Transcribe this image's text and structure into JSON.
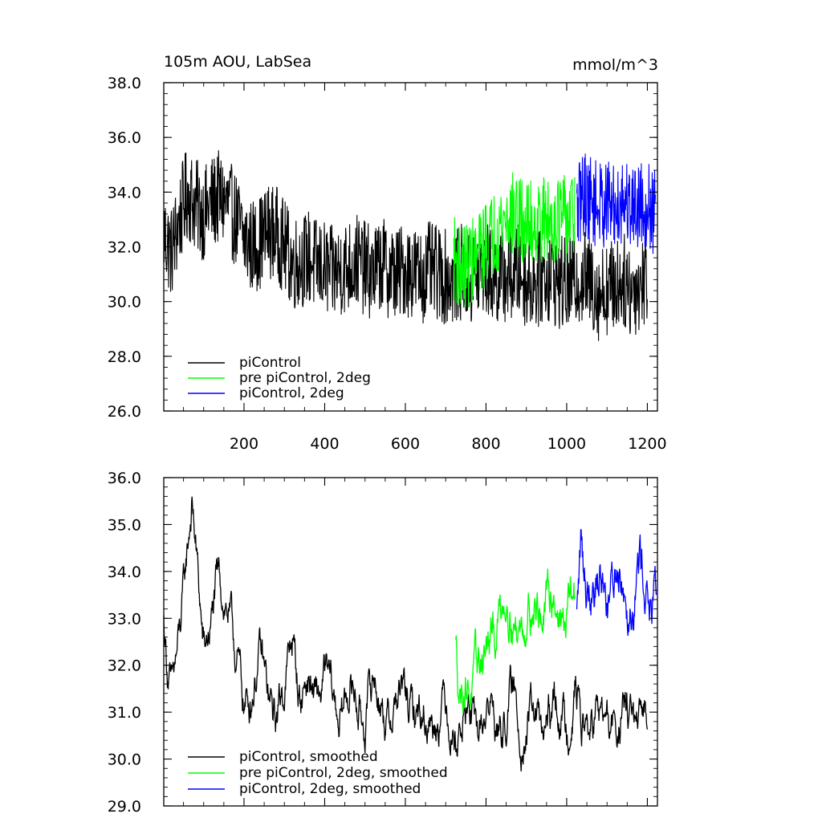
{
  "chart_data": [
    {
      "type": "line",
      "title": "105m AOU, LabSea",
      "units": "mmol/m^3",
      "xlabel": "",
      "ylabel": "",
      "xlim": [
        1,
        1225
      ],
      "ylim": [
        26.0,
        38.0
      ],
      "xticks": [
        200,
        400,
        600,
        800,
        1000,
        1200
      ],
      "xtick_labels": [
        "200",
        "400",
        "600",
        "800",
        "1000",
        "1200"
      ],
      "yticks": [
        26.0,
        28.0,
        30.0,
        32.0,
        34.0,
        36.0,
        38.0
      ],
      "ytick_labels": [
        "26.0",
        "28.0",
        "30.0",
        "32.0",
        "34.0",
        "36.0",
        "38.0"
      ],
      "legend_position": "bottom-left",
      "series": [
        {
          "name": "piControl",
          "color": "#000000",
          "x": [
            1,
            20,
            40,
            60,
            80,
            100,
            120,
            140,
            160,
            180,
            200,
            220,
            240,
            260,
            280,
            300,
            320,
            340,
            360,
            380,
            400,
            420,
            440,
            460,
            480,
            500,
            520,
            540,
            560,
            580,
            600,
            620,
            640,
            660,
            680,
            700,
            720,
            740,
            760,
            780,
            800,
            820,
            840,
            860,
            880,
            900,
            920,
            940,
            960,
            980,
            1000,
            1020,
            1040,
            1060,
            1080,
            1100,
            1120,
            1140,
            1160,
            1180,
            1200
          ],
          "values": [
            32.5,
            31.8,
            33.0,
            34.0,
            33.5,
            33.2,
            33.6,
            33.8,
            33.5,
            33.0,
            32.3,
            32.0,
            32.2,
            32.6,
            32.5,
            32.0,
            31.4,
            31.5,
            31.6,
            31.3,
            31.2,
            31.0,
            31.2,
            31.3,
            31.5,
            31.2,
            31.0,
            31.4,
            31.1,
            31.0,
            31.2,
            31.1,
            30.9,
            31.2,
            31.0,
            30.9,
            30.8,
            31.1,
            30.7,
            31.0,
            31.2,
            30.8,
            31.0,
            30.9,
            31.1,
            30.8,
            30.7,
            30.9,
            31.0,
            30.7,
            30.6,
            30.8,
            30.9,
            30.7,
            30.3,
            30.5,
            30.6,
            30.8,
            30.4,
            30.6,
            31.0
          ],
          "amplitude": 1.1
        },
        {
          "name": "pre piControl, 2deg",
          "color": "#00ff00",
          "x": [
            720,
            740,
            760,
            780,
            800,
            820,
            840,
            860,
            880,
            900,
            920,
            940,
            960,
            980,
            1000,
            1020
          ],
          "values": [
            31.6,
            31.2,
            31.4,
            31.6,
            32.2,
            32.5,
            32.9,
            33.2,
            33.0,
            32.8,
            32.9,
            33.0,
            32.9,
            33.1,
            33.0,
            33.2
          ],
          "amplitude": 1.0
        },
        {
          "name": "piControl, 2deg",
          "color": "#0000ff",
          "x": [
            1025,
            1040,
            1060,
            1080,
            1100,
            1120,
            1140,
            1160,
            1180,
            1200,
            1220
          ],
          "values": [
            33.2,
            34.0,
            33.7,
            33.5,
            33.6,
            33.4,
            33.8,
            33.5,
            33.6,
            33.5,
            33.2
          ],
          "amplitude": 1.0
        }
      ]
    },
    {
      "type": "line",
      "title": "",
      "xlabel": "",
      "ylabel": "",
      "xlim": [
        1,
        1225
      ],
      "ylim": [
        29.0,
        36.0
      ],
      "xticks": [
        200,
        400,
        600,
        800,
        1000,
        1200
      ],
      "yticks": [
        29.0,
        30.0,
        31.0,
        32.0,
        33.0,
        34.0,
        35.0,
        36.0
      ],
      "ytick_labels": [
        "29.0",
        "30.0",
        "31.0",
        "32.0",
        "33.0",
        "34.0",
        "35.0",
        "36.0"
      ],
      "legend_position": "bottom-left",
      "series": [
        {
          "name": "piControl, smoothed",
          "color": "#000000",
          "x": [
            1,
            10,
            20,
            40,
            60,
            70,
            80,
            90,
            100,
            120,
            140,
            160,
            180,
            200,
            220,
            240,
            260,
            280,
            300,
            320,
            340,
            360,
            380,
            400,
            420,
            440,
            460,
            480,
            500,
            520,
            540,
            560,
            580,
            600,
            620,
            640,
            660,
            680,
            700,
            720,
            740,
            760,
            780,
            800,
            820,
            840,
            860,
            880,
            900,
            920,
            940,
            960,
            980,
            1000,
            1020,
            1040,
            1060,
            1080,
            1100,
            1120,
            1140,
            1160,
            1180,
            1200
          ],
          "values": [
            32.9,
            31.8,
            31.2,
            32.8,
            34.4,
            35.2,
            34.5,
            33.5,
            32.5,
            32.8,
            33.8,
            33.4,
            32.0,
            31.2,
            31.6,
            32.0,
            31.4,
            30.9,
            31.4,
            32.8,
            31.2,
            31.6,
            31.4,
            31.6,
            31.2,
            31.1,
            31.4,
            31.2,
            31.0,
            31.5,
            31.3,
            30.9,
            31.1,
            31.5,
            31.0,
            30.7,
            31.1,
            30.9,
            31.2,
            30.8,
            30.6,
            30.9,
            30.7,
            30.8,
            31.0,
            30.6,
            31.2,
            30.9,
            30.7,
            30.8,
            30.6,
            30.9,
            31.0,
            30.8,
            31.5,
            30.5,
            30.9,
            30.8,
            30.6,
            30.9,
            30.7,
            31.0,
            30.6,
            31.0
          ],
          "amplitude": 0.35
        },
        {
          "name": "pre piControl, 2deg, smoothed",
          "color": "#00ff00",
          "x": [
            725,
            735,
            750,
            770,
            790,
            810,
            830,
            850,
            870,
            890,
            910,
            930,
            950,
            970,
            990,
            1010,
            1020
          ],
          "values": [
            32.4,
            31.3,
            31.6,
            31.8,
            32.0,
            32.3,
            33.2,
            33.4,
            33.0,
            33.0,
            33.1,
            33.3,
            33.2,
            33.4,
            33.0,
            33.5,
            33.2
          ],
          "amplitude": 0.4
        },
        {
          "name": "piControl, 2deg, smoothed",
          "color": "#0000ff",
          "x": [
            1025,
            1035,
            1050,
            1070,
            1090,
            1110,
            1130,
            1150,
            1170,
            1190,
            1210,
            1222
          ],
          "values": [
            32.9,
            34.7,
            33.9,
            33.7,
            34.0,
            33.6,
            34.0,
            33.8,
            33.9,
            34.0,
            33.4,
            33.2
          ],
          "amplitude": 0.45
        }
      ]
    }
  ]
}
